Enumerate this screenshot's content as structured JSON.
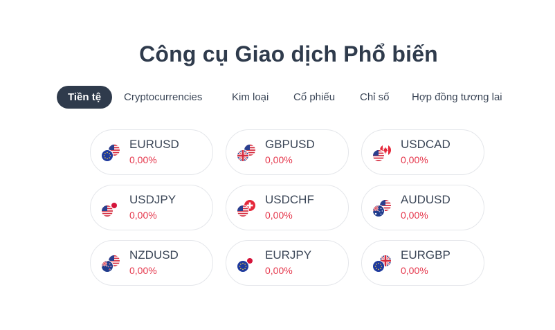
{
  "title": "Công cụ Giao dịch Phổ biến",
  "tabs": [
    {
      "label": "Tiền tệ",
      "active": true
    },
    {
      "label": "Cryptocurrencies",
      "active": false
    },
    {
      "label": "Kim loại",
      "active": false
    },
    {
      "label": "Cổ phiếu",
      "active": false
    },
    {
      "label": "Chỉ số",
      "active": false
    },
    {
      "label": "Hợp đồng tương lai",
      "active": false
    }
  ],
  "instruments": [
    {
      "symbol": "EURUSD",
      "change": "0,00%",
      "base_flag": "eu-flag-icon",
      "quote_flag": "us-flag-icon"
    },
    {
      "symbol": "GBPUSD",
      "change": "0,00%",
      "base_flag": "uk-flag-icon",
      "quote_flag": "us-flag-icon"
    },
    {
      "symbol": "USDCAD",
      "change": "0,00%",
      "base_flag": "us-flag-icon",
      "quote_flag": "ca-flag-icon"
    },
    {
      "symbol": "USDJPY",
      "change": "0,00%",
      "base_flag": "us-flag-icon",
      "quote_flag": "jp-flag-icon"
    },
    {
      "symbol": "USDCHF",
      "change": "0,00%",
      "base_flag": "us-flag-icon",
      "quote_flag": "ch-flag-icon"
    },
    {
      "symbol": "AUDUSD",
      "change": "0,00%",
      "base_flag": "au-flag-icon",
      "quote_flag": "us-flag-icon"
    },
    {
      "symbol": "NZDUSD",
      "change": "0,00%",
      "base_flag": "nz-flag-icon",
      "quote_flag": "us-flag-icon"
    },
    {
      "symbol": "EURJPY",
      "change": "0,00%",
      "base_flag": "eu-flag-icon",
      "quote_flag": "jp-flag-icon"
    },
    {
      "symbol": "EURGBP",
      "change": "0,00%",
      "base_flag": "eu-flag-icon",
      "quote_flag": "uk-flag-icon"
    }
  ],
  "colors": {
    "heading": "#2f3b4c",
    "active_tab_bg": "#2f3b4c",
    "negative_change": "#e5364b",
    "card_border": "#e4e6ea"
  }
}
